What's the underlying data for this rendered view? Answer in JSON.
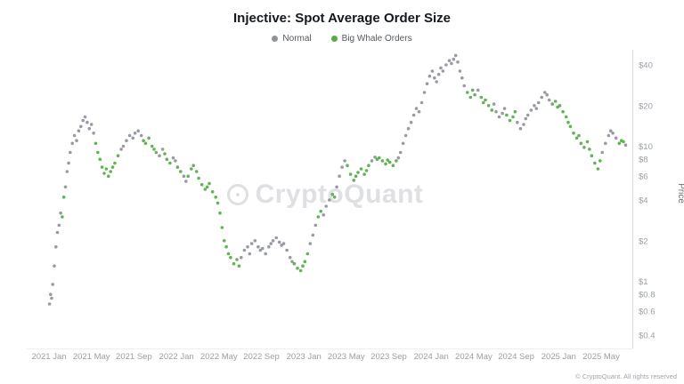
{
  "header": {
    "title": "Injective: Spot Average Order Size"
  },
  "watermark": {
    "text": "CryptoQuant"
  },
  "footer": {
    "copyright": "© CryptoQuant. All rights reserved"
  },
  "chart_data": {
    "type": "scatter",
    "title": "Injective: Spot Average Order Size",
    "xlabel": "",
    "ylabel": "Price",
    "y_scale": "log",
    "grid": false,
    "legend_position": "top-center",
    "y_ticks": [
      "$40",
      "$20",
      "$10",
      "$8",
      "$6",
      "$4",
      "$2",
      "$1",
      "$0.8",
      "$0.6",
      "$0.4"
    ],
    "y_tick_values": [
      40,
      20,
      10,
      8,
      6,
      4,
      2,
      1,
      0.8,
      0.6,
      0.4
    ],
    "ylim": [
      0.4,
      55
    ],
    "x_ticks": [
      "2021 Jan",
      "2021 May",
      "2021 Sep",
      "2022 Jan",
      "2022 May",
      "2022 Sep",
      "2023 Jan",
      "2023 May",
      "2023 Sep",
      "2024 Jan",
      "2024 May",
      "2024 Sep",
      "2025 Jan",
      "2025 May"
    ],
    "x_tick_t": [
      0,
      4,
      8,
      12,
      16,
      20,
      24,
      28,
      32,
      36,
      40,
      44,
      48,
      52
    ],
    "series": [
      {
        "name": "Normal",
        "color": "#8f939c"
      },
      {
        "name": "Big Whale Orders",
        "color": "#55ad46"
      }
    ],
    "points_format": [
      "months_since_2021_jan",
      "price_usd",
      "series_index"
    ],
    "points": [
      [
        0.05,
        0.68,
        0
      ],
      [
        0.15,
        0.8,
        0
      ],
      [
        0.25,
        0.75,
        0
      ],
      [
        0.35,
        0.95,
        0
      ],
      [
        0.5,
        1.3,
        0
      ],
      [
        0.65,
        1.8,
        0
      ],
      [
        0.8,
        2.3,
        0
      ],
      [
        0.95,
        2.6,
        0
      ],
      [
        1.1,
        3.2,
        0
      ],
      [
        1.25,
        3.0,
        1
      ],
      [
        1.4,
        4.2,
        1
      ],
      [
        1.55,
        5.0,
        0
      ],
      [
        1.7,
        6.5,
        0
      ],
      [
        1.85,
        7.5,
        0
      ],
      [
        2.0,
        9.0,
        0
      ],
      [
        2.2,
        10.5,
        0
      ],
      [
        2.4,
        12.0,
        0
      ],
      [
        2.6,
        11.0,
        0
      ],
      [
        2.8,
        13.0,
        0
      ],
      [
        3.0,
        14.0,
        0
      ],
      [
        3.2,
        15.5,
        0
      ],
      [
        3.4,
        16.5,
        0
      ],
      [
        3.6,
        15.0,
        0
      ],
      [
        3.8,
        13.5,
        0
      ],
      [
        4.0,
        14.5,
        0
      ],
      [
        4.2,
        12.5,
        0
      ],
      [
        4.4,
        10.5,
        1
      ],
      [
        4.6,
        9.0,
        1
      ],
      [
        4.8,
        8.0,
        1
      ],
      [
        5.0,
        7.0,
        1
      ],
      [
        5.2,
        6.3,
        1
      ],
      [
        5.4,
        6.8,
        1
      ],
      [
        5.6,
        6.0,
        1
      ],
      [
        5.8,
        6.5,
        1
      ],
      [
        6.0,
        7.0,
        1
      ],
      [
        6.2,
        7.5,
        1
      ],
      [
        6.5,
        8.5,
        1
      ],
      [
        6.8,
        9.5,
        0
      ],
      [
        7.0,
        10.0,
        0
      ],
      [
        7.3,
        11.0,
        0
      ],
      [
        7.6,
        12.0,
        0
      ],
      [
        7.9,
        11.5,
        0
      ],
      [
        8.1,
        12.5,
        0
      ],
      [
        8.4,
        13.0,
        0
      ],
      [
        8.7,
        12.0,
        0
      ],
      [
        8.9,
        11.0,
        1
      ],
      [
        9.1,
        10.5,
        1
      ],
      [
        9.4,
        11.5,
        1
      ],
      [
        9.7,
        10.0,
        1
      ],
      [
        9.9,
        9.5,
        1
      ],
      [
        10.1,
        9.0,
        1
      ],
      [
        10.4,
        8.5,
        0
      ],
      [
        10.7,
        9.5,
        0
      ],
      [
        10.9,
        8.8,
        1
      ],
      [
        11.1,
        8.0,
        1
      ],
      [
        11.4,
        7.5,
        1
      ],
      [
        11.7,
        8.2,
        0
      ],
      [
        11.9,
        7.8,
        0
      ],
      [
        12.1,
        7.0,
        1
      ],
      [
        12.4,
        6.5,
        1
      ],
      [
        12.7,
        6.0,
        0
      ],
      [
        12.9,
        5.5,
        0
      ],
      [
        13.1,
        6.0,
        1
      ],
      [
        13.4,
        6.8,
        1
      ],
      [
        13.6,
        7.2,
        1
      ],
      [
        13.9,
        6.5,
        1
      ],
      [
        14.1,
        5.8,
        1
      ],
      [
        14.4,
        5.2,
        1
      ],
      [
        14.7,
        4.8,
        1
      ],
      [
        14.9,
        5.0,
        1
      ],
      [
        15.1,
        5.3,
        1
      ],
      [
        15.4,
        4.6,
        1
      ],
      [
        15.7,
        4.2,
        1
      ],
      [
        15.9,
        3.8,
        1
      ],
      [
        16.1,
        3.2,
        1
      ],
      [
        16.3,
        2.5,
        1
      ],
      [
        16.5,
        2.0,
        1
      ],
      [
        16.7,
        1.8,
        1
      ],
      [
        16.9,
        1.6,
        1
      ],
      [
        17.1,
        1.5,
        1
      ],
      [
        17.4,
        1.35,
        1
      ],
      [
        17.7,
        1.45,
        1
      ],
      [
        17.9,
        1.3,
        1
      ],
      [
        18.1,
        1.5,
        0
      ],
      [
        18.4,
        1.7,
        0
      ],
      [
        18.7,
        1.8,
        0
      ],
      [
        18.9,
        1.6,
        0
      ],
      [
        19.1,
        1.9,
        0
      ],
      [
        19.4,
        2.0,
        0
      ],
      [
        19.7,
        1.8,
        0
      ],
      [
        19.9,
        1.7,
        0
      ],
      [
        20.1,
        1.75,
        0
      ],
      [
        20.4,
        1.6,
        0
      ],
      [
        20.7,
        1.8,
        0
      ],
      [
        20.9,
        1.9,
        0
      ],
      [
        21.1,
        2.0,
        0
      ],
      [
        21.4,
        2.1,
        0
      ],
      [
        21.7,
        1.95,
        0
      ],
      [
        21.9,
        1.85,
        0
      ],
      [
        22.1,
        1.9,
        0
      ],
      [
        22.4,
        1.7,
        0
      ],
      [
        22.7,
        1.5,
        0
      ],
      [
        22.9,
        1.4,
        0
      ],
      [
        23.1,
        1.35,
        1
      ],
      [
        23.4,
        1.25,
        1
      ],
      [
        23.7,
        1.2,
        1
      ],
      [
        23.9,
        1.3,
        1
      ],
      [
        24.1,
        1.4,
        1
      ],
      [
        24.35,
        1.6,
        1
      ],
      [
        24.6,
        1.9,
        0
      ],
      [
        24.85,
        2.2,
        0
      ],
      [
        25.1,
        2.6,
        0
      ],
      [
        25.35,
        3.0,
        1
      ],
      [
        25.6,
        3.3,
        1
      ],
      [
        25.85,
        3.1,
        0
      ],
      [
        26.1,
        3.6,
        0
      ],
      [
        26.4,
        4.0,
        0
      ],
      [
        26.7,
        4.4,
        1
      ],
      [
        26.9,
        4.2,
        1
      ],
      [
        27.1,
        5.0,
        0
      ],
      [
        27.35,
        6.0,
        0
      ],
      [
        27.6,
        7.0,
        0
      ],
      [
        27.85,
        7.8,
        0
      ],
      [
        28.1,
        7.2,
        1
      ],
      [
        28.4,
        6.2,
        1
      ],
      [
        28.7,
        5.6,
        1
      ],
      [
        28.9,
        6.0,
        1
      ],
      [
        29.1,
        6.4,
        1
      ],
      [
        29.4,
        6.8,
        1
      ],
      [
        29.7,
        6.2,
        1
      ],
      [
        29.9,
        6.6,
        1
      ],
      [
        30.1,
        7.2,
        1
      ],
      [
        30.4,
        7.8,
        0
      ],
      [
        30.7,
        8.3,
        0
      ],
      [
        30.9,
        8.0,
        1
      ],
      [
        31.1,
        8.2,
        1
      ],
      [
        31.4,
        7.8,
        1
      ],
      [
        31.7,
        7.4,
        1
      ],
      [
        31.9,
        7.9,
        1
      ],
      [
        32.1,
        7.6,
        1
      ],
      [
        32.4,
        7.2,
        1
      ],
      [
        32.7,
        7.8,
        1
      ],
      [
        32.9,
        8.2,
        0
      ],
      [
        33.1,
        9.0,
        0
      ],
      [
        33.35,
        10.5,
        0
      ],
      [
        33.6,
        12.0,
        0
      ],
      [
        33.85,
        13.5,
        0
      ],
      [
        34.1,
        15.0,
        0
      ],
      [
        34.35,
        17.0,
        0
      ],
      [
        34.6,
        19.0,
        0
      ],
      [
        34.85,
        18.0,
        0
      ],
      [
        35.1,
        21.0,
        0
      ],
      [
        35.35,
        25.0,
        0
      ],
      [
        35.6,
        29.0,
        0
      ],
      [
        35.85,
        33.0,
        0
      ],
      [
        36.1,
        36.0,
        0
      ],
      [
        36.3,
        32.0,
        0
      ],
      [
        36.5,
        30.0,
        0
      ],
      [
        36.7,
        34.0,
        0
      ],
      [
        36.9,
        38.0,
        0
      ],
      [
        37.1,
        36.0,
        0
      ],
      [
        37.4,
        40.0,
        0
      ],
      [
        37.7,
        43.0,
        0
      ],
      [
        37.9,
        41.0,
        0
      ],
      [
        38.1,
        44.0,
        0
      ],
      [
        38.3,
        47.0,
        0
      ],
      [
        38.5,
        42.0,
        0
      ],
      [
        38.7,
        36.0,
        0
      ],
      [
        38.9,
        32.0,
        0
      ],
      [
        39.1,
        28.0,
        0
      ],
      [
        39.4,
        25.0,
        1
      ],
      [
        39.7,
        23.0,
        1
      ],
      [
        39.9,
        26.0,
        1
      ],
      [
        40.1,
        24.0,
        1
      ],
      [
        40.4,
        26.0,
        0
      ],
      [
        40.7,
        23.0,
        1
      ],
      [
        40.9,
        21.0,
        1
      ],
      [
        41.1,
        22.0,
        1
      ],
      [
        41.4,
        20.0,
        1
      ],
      [
        41.7,
        18.5,
        1
      ],
      [
        41.9,
        20.5,
        0
      ],
      [
        42.1,
        18.0,
        0
      ],
      [
        42.4,
        16.5,
        0
      ],
      [
        42.7,
        17.5,
        0
      ],
      [
        42.9,
        19.0,
        0
      ],
      [
        43.1,
        17.0,
        1
      ],
      [
        43.4,
        15.5,
        1
      ],
      [
        43.7,
        16.5,
        1
      ],
      [
        43.9,
        18.0,
        1
      ],
      [
        44.1,
        15.0,
        0
      ],
      [
        44.4,
        13.5,
        0
      ],
      [
        44.7,
        14.5,
        0
      ],
      [
        44.9,
        16.0,
        0
      ],
      [
        45.1,
        17.0,
        0
      ],
      [
        45.4,
        18.5,
        0
      ],
      [
        45.7,
        20.0,
        0
      ],
      [
        45.9,
        19.0,
        0
      ],
      [
        46.1,
        21.0,
        0
      ],
      [
        46.4,
        23.0,
        0
      ],
      [
        46.7,
        25.0,
        0
      ],
      [
        46.9,
        24.0,
        0
      ],
      [
        47.1,
        22.0,
        0
      ],
      [
        47.4,
        20.5,
        1
      ],
      [
        47.7,
        21.5,
        1
      ],
      [
        47.9,
        19.5,
        1
      ],
      [
        48.1,
        20.0,
        1
      ],
      [
        48.4,
        18.0,
        1
      ],
      [
        48.7,
        16.5,
        1
      ],
      [
        48.9,
        15.0,
        1
      ],
      [
        49.1,
        14.0,
        1
      ],
      [
        49.4,
        12.5,
        1
      ],
      [
        49.7,
        11.5,
        1
      ],
      [
        49.9,
        12.0,
        1
      ],
      [
        50.1,
        10.5,
        1
      ],
      [
        50.4,
        9.8,
        1
      ],
      [
        50.7,
        10.8,
        1
      ],
      [
        50.9,
        9.5,
        1
      ],
      [
        51.1,
        8.5,
        1
      ],
      [
        51.4,
        7.5,
        1
      ],
      [
        51.7,
        6.8,
        1
      ],
      [
        51.9,
        7.8,
        1
      ],
      [
        52.1,
        9.0,
        0
      ],
      [
        52.4,
        10.5,
        0
      ],
      [
        52.7,
        12.0,
        0
      ],
      [
        52.9,
        13.0,
        0
      ],
      [
        53.1,
        12.5,
        0
      ],
      [
        53.4,
        11.5,
        0
      ],
      [
        53.7,
        10.5,
        1
      ],
      [
        53.9,
        11.0,
        1
      ],
      [
        54.1,
        10.8,
        1
      ],
      [
        54.3,
        10.2,
        0
      ]
    ]
  }
}
